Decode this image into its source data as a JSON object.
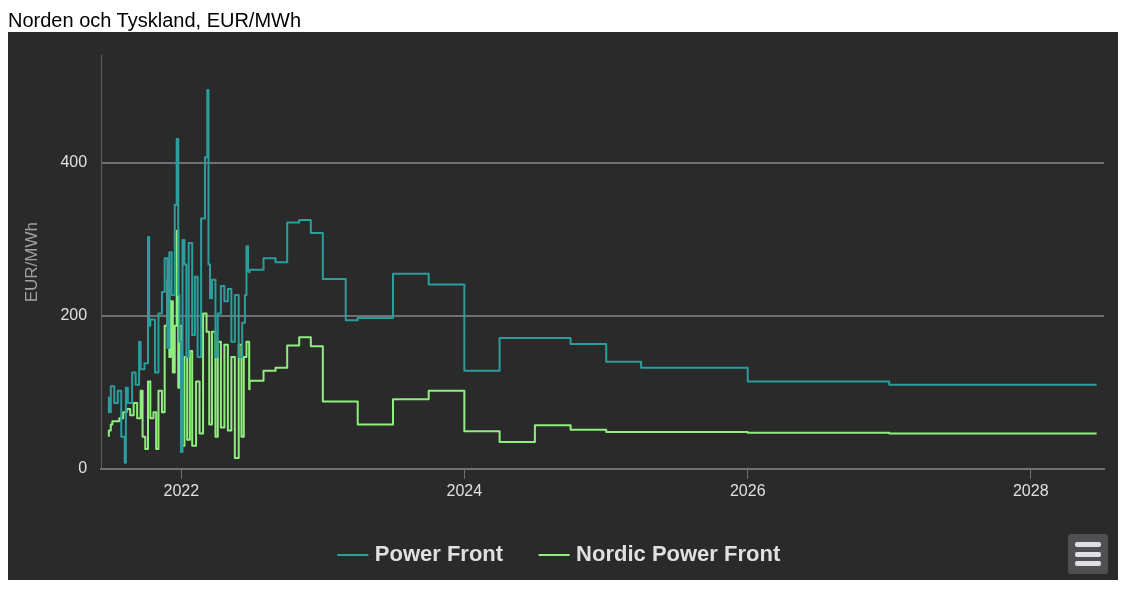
{
  "chart_data": {
    "type": "step",
    "title": "Norden och Tyskland, EUR/MWh",
    "ylabel": "EUR/MWh",
    "xlim": [
      "2021-06-08",
      "2028-07-08"
    ],
    "xticks": [
      "2022",
      "2024",
      "2026",
      "2028"
    ],
    "ylim": [
      0,
      540
    ],
    "yticks": [
      0,
      200,
      400
    ],
    "grid": "y",
    "legend": "bottom",
    "line_style": "solid",
    "marker": "none",
    "series": [
      {
        "name": "Power Front",
        "color": "#2a9d9d",
        "x": [
          "2021-06-28",
          "2021-07-03",
          "2021-07-12",
          "2021-07-21",
          "2021-07-30",
          "2021-08-08",
          "2021-08-11",
          "2021-08-16",
          "2021-08-27",
          "2021-09-05",
          "2021-09-14",
          "2021-09-18",
          "2021-09-28",
          "2021-10-07",
          "2021-10-10",
          "2021-10-13",
          "2021-10-25",
          "2021-11-03",
          "2021-11-12",
          "2021-11-19",
          "2021-11-26",
          "2021-12-01",
          "2021-12-07",
          "2021-12-15",
          "2021-12-20",
          "2021-12-24",
          "2021-12-27",
          "2021-12-31",
          "2022-01-04",
          "2022-01-09",
          "2022-01-14",
          "2022-01-20",
          "2022-01-29",
          "2022-02-05",
          "2022-02-12",
          "2022-02-21",
          "2022-03-03",
          "2022-03-09",
          "2022-03-12",
          "2022-03-16",
          "2022-03-21",
          "2022-03-30",
          "2022-04-05",
          "2022-04-13",
          "2022-04-22",
          "2022-05-01",
          "2022-05-10",
          "2022-05-19",
          "2022-05-29",
          "2022-06-07",
          "2022-06-14",
          "2022-06-18",
          "2022-06-22",
          "2022-06-25",
          "2022-06-26",
          "2022-08-01",
          "2022-09-01",
          "2022-10-01",
          "2022-11-01",
          "2022-12-01",
          "2023-01-01",
          "2023-03-01",
          "2023-04-01",
          "2023-07-01",
          "2023-10-01",
          "2024-01-01",
          "2024-04-01",
          "2024-10-01",
          "2025-01-01",
          "2025-04-01",
          "2026-01-01",
          "2027-01-01",
          "2028-01-01",
          "2028-06-19"
        ],
        "values": [
          94,
          74,
          108,
          86,
          102,
          42,
          8,
          106,
          86,
          126,
          110,
          166,
          130,
          138,
          303,
          187,
          195,
          126,
          203,
          231,
          275,
          158,
          283,
          227,
          345,
          431,
          227,
          166,
          22,
          299,
          267,
          146,
          295,
          175,
          251,
          146,
          327,
          407,
          495,
          267,
          223,
          247,
          146,
          203,
          239,
          219,
          235,
          166,
          227,
          146,
          191,
          227,
          291,
          259,
          257,
          260,
          275,
          270,
          322,
          325,
          308,
          248,
          194,
          197,
          255,
          241,
          128,
          171,
          163,
          140,
          132,
          114,
          110,
          110
        ]
      },
      {
        "name": "Nordic Power Front",
        "color": "#90ee7e",
        "x": [
          "2021-06-28",
          "2021-07-03",
          "2021-07-07",
          "2021-07-16",
          "2021-07-25",
          "2021-08-04",
          "2021-08-13",
          "2021-08-22",
          "2021-08-31",
          "2021-09-09",
          "2021-09-18",
          "2021-09-23",
          "2021-09-30",
          "2021-10-07",
          "2021-10-13",
          "2021-10-21",
          "2021-10-28",
          "2021-11-03",
          "2021-11-12",
          "2021-11-19",
          "2021-11-26",
          "2021-12-01",
          "2021-12-05",
          "2021-12-10",
          "2021-12-15",
          "2021-12-20",
          "2021-12-24",
          "2021-12-27",
          "2022-01-02",
          "2022-01-09",
          "2022-01-16",
          "2022-01-23",
          "2022-01-29",
          "2022-02-08",
          "2022-02-17",
          "2022-02-26",
          "2022-03-07",
          "2022-03-14",
          "2022-03-21",
          "2022-03-30",
          "2022-04-05",
          "2022-04-13",
          "2022-04-22",
          "2022-05-01",
          "2022-05-10",
          "2022-05-19",
          "2022-05-29",
          "2022-06-05",
          "2022-06-11",
          "2022-06-18",
          "2022-06-25",
          "2022-06-26",
          "2022-08-01",
          "2022-09-01",
          "2022-10-01",
          "2022-11-01",
          "2022-12-01",
          "2023-01-01",
          "2023-04-01",
          "2023-07-01",
          "2023-10-01",
          "2024-01-01",
          "2024-04-01",
          "2024-07-01",
          "2024-10-01",
          "2025-01-01",
          "2026-01-01",
          "2027-01-01",
          "2028-01-01",
          "2028-06-19"
        ],
        "values": [
          42,
          50,
          58,
          62,
          62,
          66,
          74,
          78,
          70,
          86,
          66,
          102,
          42,
          26,
          114,
          66,
          74,
          26,
          102,
          74,
          187,
          247,
          146,
          219,
          126,
          187,
          311,
          106,
          187,
          30,
          146,
          38,
          154,
          30,
          114,
          46,
          203,
          179,
          58,
          179,
          42,
          166,
          54,
          162,
          50,
          146,
          14,
          162,
          42,
          146,
          166,
          104,
          115,
          128,
          132,
          161,
          172,
          160,
          88,
          58,
          91,
          102,
          49,
          35,
          57,
          51,
          48,
          47,
          46,
          46
        ]
      }
    ]
  }
}
